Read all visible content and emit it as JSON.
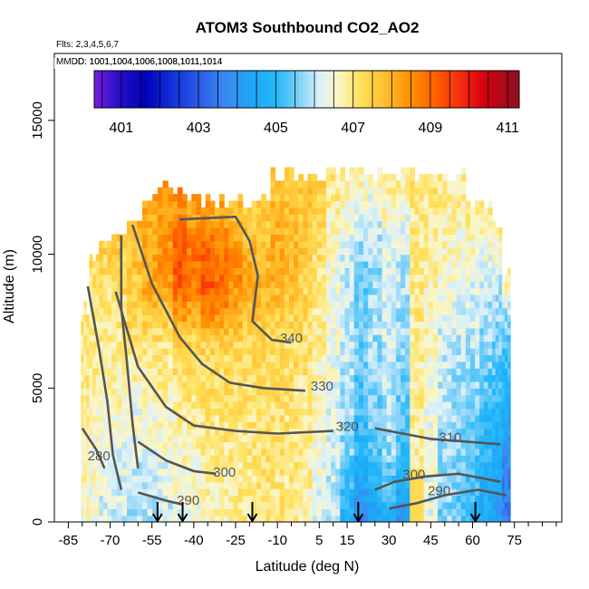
{
  "chart_data": {
    "type": "heatmap",
    "title": "ATOM3 Southbound CO2_AO2",
    "flights_note": "Flts: 2,3,4,5,6,7",
    "mmdd_note": "MMDD: 1001,1004,1006,1008,1011,1014",
    "xlabel": "Latitude (deg N)",
    "ylabel": "Altitude (m)",
    "xlim": [
      -90,
      92
    ],
    "ylim": [
      0,
      17500
    ],
    "x_ticks": [
      -85,
      -70,
      -55,
      -40,
      -25,
      -10,
      5,
      15,
      30,
      45,
      60,
      75
    ],
    "x_minor_ticks": [
      -80,
      -75,
      -65,
      -60,
      -50,
      -45,
      -35,
      -30,
      -20,
      -15,
      -5,
      0,
      10,
      20,
      25,
      35,
      40,
      50,
      55,
      65,
      70,
      80,
      85,
      90
    ],
    "y_ticks": [
      0,
      5000,
      10000,
      15000
    ],
    "y_tick_labels": [
      "0",
      "5000",
      "10000",
      "15000"
    ],
    "colorbar": {
      "min": 400.3,
      "max": 411.3,
      "labels": [
        "401",
        "403",
        "405",
        "407",
        "409",
        "411"
      ],
      "label_values": [
        401,
        403,
        405,
        407,
        409,
        411
      ],
      "stops": [
        [
          400.3,
          "#7a1ee0"
        ],
        [
          400.9,
          "#2a10c8"
        ],
        [
          401.6,
          "#0000b8"
        ],
        [
          402.3,
          "#1030d8"
        ],
        [
          403.0,
          "#2a5ae8"
        ],
        [
          403.7,
          "#3a8af0"
        ],
        [
          404.4,
          "#1ea8f6"
        ],
        [
          405.0,
          "#22b8fa"
        ],
        [
          405.6,
          "#7fd0f8"
        ],
        [
          406.1,
          "#d8f0fc"
        ],
        [
          406.6,
          "#fbf6c8"
        ],
        [
          407.2,
          "#ffe05a"
        ],
        [
          407.8,
          "#ffc030"
        ],
        [
          408.5,
          "#ff9000"
        ],
        [
          409.2,
          "#ff5a00"
        ],
        [
          409.8,
          "#f42a10"
        ],
        [
          410.4,
          "#d40010"
        ],
        [
          411.3,
          "#8c1020"
        ]
      ]
    },
    "columns": [
      {
        "lat": -79,
        "top": 7900,
        "base": 6.6,
        "hi": 7.2,
        "peak": 405.0
      },
      {
        "lat": -76,
        "top": 9900,
        "base": 6.4,
        "hi": 7.3,
        "peak": 405.0
      },
      {
        "lat": -72,
        "top": 10100,
        "base": 6.2,
        "hi": 7.4,
        "peak": 404.9
      },
      {
        "lat": -67,
        "top": 10600,
        "base": 6.1,
        "hi": 7.6,
        "peak": 405.0
      },
      {
        "lat": -61,
        "top": 11000,
        "base": 5.9,
        "hi": 7.9,
        "peak": 405.2
      },
      {
        "lat": -56,
        "top": 11800,
        "base": 6.0,
        "hi": 8.2,
        "peak": 405.6
      },
      {
        "lat": -50,
        "top": 12400,
        "base": 6.1,
        "hi": 8.3,
        "peak": 405.9
      },
      {
        "lat": -45,
        "top": 12100,
        "base": 6.3,
        "hi": 8.6,
        "peak": 406.4
      },
      {
        "lat": -40,
        "top": 12000,
        "base": 6.4,
        "hi": 8.4,
        "peak": 406.1
      },
      {
        "lat": -35,
        "top": 11800,
        "base": 6.6,
        "hi": 8.4,
        "peak": 406.5
      },
      {
        "lat": -30,
        "top": 11900,
        "base": 6.7,
        "hi": 8.2,
        "peak": 406.3
      },
      {
        "lat": -25,
        "top": 11800,
        "base": 6.8,
        "hi": 7.9,
        "peak": 406.0
      },
      {
        "lat": -20,
        "top": 11800,
        "base": 6.9,
        "hi": 7.6,
        "peak": 405.7
      },
      {
        "lat": -15,
        "top": 11800,
        "base": 7.0,
        "hi": 7.6,
        "peak": 405.5
      },
      {
        "lat": -10,
        "top": 12900,
        "base": 7.0,
        "hi": 7.7,
        "peak": 405.6
      },
      {
        "lat": -5,
        "top": 12900,
        "base": 6.9,
        "hi": 7.7,
        "peak": 405.4
      },
      {
        "lat": 0,
        "top": 12900,
        "base": 6.7,
        "hi": 7.7,
        "peak": 405.2
      },
      {
        "lat": 5,
        "top": 12900,
        "base": 6.3,
        "hi": 7.5,
        "peak": 405.0
      },
      {
        "lat": 10,
        "top": 12900,
        "base": 6.0,
        "hi": 7.0,
        "peak": 404.8
      },
      {
        "lat": 15,
        "top": 12900,
        "base": 5.5,
        "hi": 6.8,
        "peak": 404.7
      },
      {
        "lat": 20,
        "top": 12900,
        "base": 4.7,
        "hi": 6.7,
        "peak": 404.5
      },
      {
        "lat": 25,
        "top": 12900,
        "base": 5.2,
        "hi": 6.6,
        "peak": 404.6
      },
      {
        "lat": 30,
        "top": 12900,
        "base": 5.6,
        "hi": 6.8,
        "peak": 404.8
      },
      {
        "lat": 35,
        "top": 12900,
        "base": 5.0,
        "hi": 6.8,
        "peak": 404.8
      },
      {
        "lat": 40,
        "top": 12900,
        "base": 6.8,
        "hi": 7.0,
        "peak": 405.0
      },
      {
        "lat": 45,
        "top": 12900,
        "base": 6.3,
        "hi": 7.0,
        "peak": 405.0
      },
      {
        "lat": 50,
        "top": 12900,
        "base": 5.6,
        "hi": 6.9,
        "peak": 405.1
      },
      {
        "lat": 55,
        "top": 12900,
        "base": 5.4,
        "hi": 6.9,
        "peak": 405.0
      },
      {
        "lat": 60,
        "top": 12000,
        "base": 5.0,
        "hi": 7.0,
        "peak": 405.0
      },
      {
        "lat": 65,
        "top": 12000,
        "base": 4.6,
        "hi": 7.0,
        "peak": 404.9
      },
      {
        "lat": 69,
        "top": 11000,
        "base": 4.2,
        "hi": 6.9,
        "peak": 404.8
      },
      {
        "lat": 72,
        "top": 9000,
        "base": 3.4,
        "hi": 6.7,
        "peak": 404.6
      }
    ],
    "hot_spot": {
      "lat": 41,
      "alt_max": 1800,
      "value": 407.8
    },
    "contours": [
      {
        "label": "340",
        "label_pos": [
          -5,
          6700
        ],
        "points": [
          [
            -45,
            11300
          ],
          [
            -25,
            11400
          ],
          [
            -20,
            10500
          ],
          [
            -17,
            9200
          ],
          [
            -19,
            7500
          ],
          [
            -12,
            6800
          ],
          [
            -5,
            6700
          ]
        ]
      },
      {
        "label": "330",
        "label_pos": [
          6,
          4900
        ],
        "points": [
          [
            -62,
            11100
          ],
          [
            -55,
            8900
          ],
          [
            -45,
            6900
          ],
          [
            -37,
            5900
          ],
          [
            -27,
            5200
          ],
          [
            -15,
            5000
          ],
          [
            0,
            4900
          ]
        ]
      },
      {
        "label": "320",
        "label_pos": [
          15,
          3400
        ],
        "points": [
          [
            -68,
            8600
          ],
          [
            -60,
            5800
          ],
          [
            -50,
            4300
          ],
          [
            -40,
            3600
          ],
          [
            -25,
            3400
          ],
          [
            -10,
            3300
          ],
          [
            10,
            3400
          ]
        ]
      },
      {
        "label": "310",
        "label_pos": [
          52,
          3000
        ],
        "points": [
          [
            25,
            3500
          ],
          [
            35,
            3300
          ],
          [
            45,
            3100
          ],
          [
            58,
            3000
          ],
          [
            70,
            2900
          ]
        ]
      },
      {
        "label": "300",
        "label_pos": [
          -29,
          1700
        ],
        "points": [
          [
            -60,
            3000
          ],
          [
            -50,
            2300
          ],
          [
            -40,
            1900
          ],
          [
            -32,
            1800
          ]
        ]
      },
      {
        "label": "300",
        "label_pos": [
          39,
          1600
        ],
        "points": [
          [
            25,
            1200
          ],
          [
            32,
            1500
          ],
          [
            43,
            1700
          ],
          [
            55,
            1800
          ],
          [
            70,
            1500
          ]
        ]
      },
      {
        "label": "290",
        "label_pos": [
          -42,
          650
        ],
        "points": [
          [
            -60,
            1100
          ],
          [
            -50,
            800
          ],
          [
            -44,
            650
          ]
        ]
      },
      {
        "label": "290",
        "label_pos": [
          48,
          1000
        ],
        "points": [
          [
            30,
            500
          ],
          [
            40,
            700
          ],
          [
            50,
            1000
          ],
          [
            62,
            1200
          ],
          [
            72,
            1000
          ]
        ]
      },
      {
        "label": "280",
        "label_pos": [
          -74,
          2300
        ],
        "points": [
          [
            -80,
            3500
          ],
          [
            -75,
            2700
          ],
          [
            -72,
            2000
          ]
        ]
      },
      {
        "label": "",
        "label_pos": [
          0,
          0
        ],
        "points": [
          [
            -78,
            8800
          ],
          [
            -74,
            6500
          ],
          [
            -71,
            4500
          ],
          [
            -69,
            2500
          ],
          [
            -66,
            1200
          ]
        ]
      },
      {
        "label": "",
        "label_pos": [
          0,
          0
        ],
        "points": [
          [
            -66,
            10700
          ],
          [
            -66,
            8000
          ],
          [
            -64,
            6000
          ],
          [
            -62,
            3700
          ],
          [
            -60,
            2000
          ]
        ]
      }
    ],
    "arrows_lat": [
      -53,
      -44,
      -19,
      19,
      61
    ]
  }
}
